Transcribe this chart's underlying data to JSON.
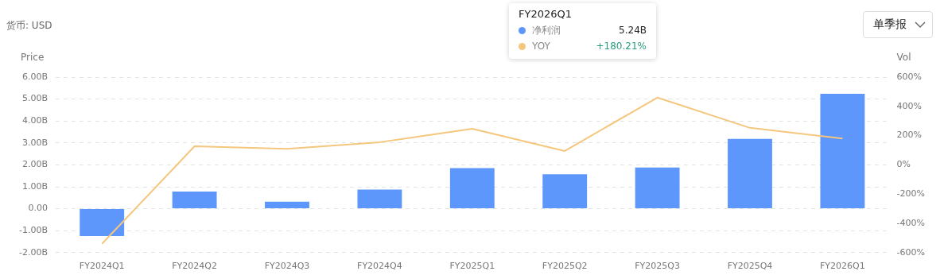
{
  "chart_data": {
    "type": "bar",
    "ylabel": "Price",
    "y2label": "Vol",
    "categories": [
      "FY2024Q1",
      "FY2024Q2",
      "FY2024Q3",
      "FY2024Q4",
      "FY2025Q1",
      "FY2025Q2",
      "FY2025Q3",
      "FY2025Q4",
      "FY2026Q1"
    ],
    "series": [
      {
        "name": "净利润",
        "color": "#5e97fb",
        "values": [
          -1.25,
          0.78,
          0.32,
          0.87,
          1.85,
          1.57,
          1.88,
          3.18,
          5.24
        ]
      },
      {
        "name": "YOY",
        "type": "line",
        "axis": "y2",
        "color": "#f5c77e",
        "values": [
          -540,
          127,
          109,
          155,
          247,
          95,
          460,
          253,
          180
        ]
      }
    ],
    "ylim": [
      -2,
      6
    ],
    "yticks": [
      {
        "value": -2,
        "label": "-2.00B"
      },
      {
        "value": -1,
        "label": "-1.00B"
      },
      {
        "value": 0,
        "label": "0.00"
      },
      {
        "value": 1,
        "label": "1.00B"
      },
      {
        "value": 2,
        "label": "2.00B"
      },
      {
        "value": 3,
        "label": "3.00B"
      },
      {
        "value": 4,
        "label": "4.00B"
      },
      {
        "value": 5,
        "label": "5.00B"
      },
      {
        "value": 6,
        "label": "6.00B"
      }
    ],
    "y2lim": [
      -600,
      600
    ],
    "y2ticks": [
      {
        "value": -600,
        "label": "-600%"
      },
      {
        "value": -400,
        "label": "-400%"
      },
      {
        "value": -200,
        "label": "-200%"
      },
      {
        "value": 0,
        "label": "0%"
      },
      {
        "value": 200,
        "label": "200%"
      },
      {
        "value": 400,
        "label": "400%"
      },
      {
        "value": 600,
        "label": "600%"
      }
    ],
    "grid": "y",
    "legend": "top right",
    "marker": "none",
    "annotations": [
      "货币: USD",
      "单季报",
      "FY2026Q1",
      "5.24B",
      "+180.21%"
    ]
  }
}
